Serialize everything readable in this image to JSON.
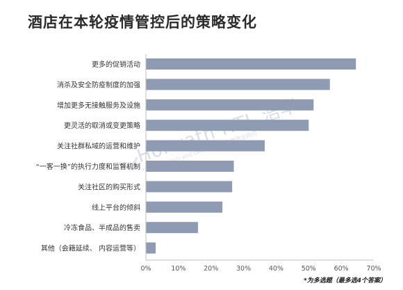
{
  "title": "酒店在本轮疫情管控后的策略变化",
  "footnote": "*为多选题（最多选4个答案）",
  "watermark": {
    "brand": "Horwath HTL 浩华",
    "tagline": "Hotel, Tourism and Leisure  酒店及旅游业顾问"
  },
  "colors": {
    "bar": "#8e9bb3",
    "axis": "#bfbfbf",
    "text": "#333333"
  },
  "chart_data": {
    "type": "bar",
    "orientation": "horizontal",
    "title": "酒店在本轮疫情管控后的策略变化",
    "categories": [
      "更多的促销活动",
      "消杀及安全防疫制度的加强",
      "增加更多无接触服务及设施",
      "更灵活的取消或变更策略",
      "关注社群私域的运营和维护",
      "“一客一换”的执行力度和监督机制",
      "关注社区的购买形式",
      "线上平台的倾斜",
      "冷冻食品、半成品的售卖",
      "其他（会籍延续、 内容运营等）"
    ],
    "values": [
      64.5,
      56.5,
      51.5,
      50,
      36.5,
      27,
      26.5,
      23.5,
      16,
      3
    ],
    "xlim": [
      0,
      70
    ],
    "xticks": [
      "0%",
      "10%",
      "20%",
      "30%",
      "40%",
      "50%",
      "60%",
      "70%"
    ],
    "grid": false,
    "legend": "none"
  }
}
